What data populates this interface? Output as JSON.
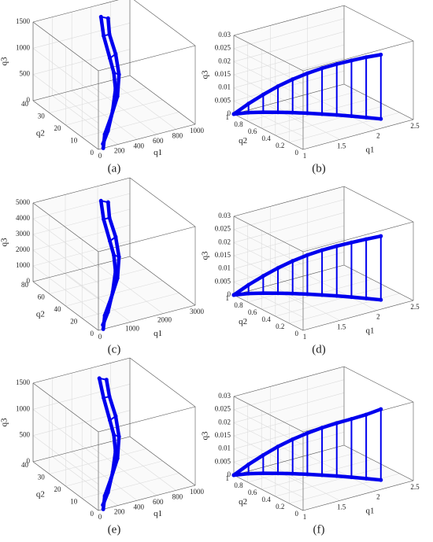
{
  "chart_data": [
    {
      "type": "line3d",
      "caption": "(a)",
      "xlabel": "q1",
      "ylabel": "q2",
      "zlabel": "q3",
      "xlim": [
        0,
        1000
      ],
      "xticks": [
        0,
        200,
        400,
        600,
        800,
        1000
      ],
      "ylim": [
        0,
        40
      ],
      "yticks": [
        0,
        10,
        20,
        30,
        40
      ],
      "zlim": [
        0,
        1500
      ],
      "zticks": [
        0,
        500,
        1000,
        1500
      ],
      "grid": true,
      "series": [
        {
          "color": "#0000ee",
          "x": [
            50,
            150,
            300,
            450,
            550,
            600,
            620,
            640
          ],
          "y": [
            0,
            5,
            10,
            15,
            20,
            25,
            30,
            32
          ],
          "z": [
            0,
            100,
            250,
            450,
            700,
            950,
            1200,
            1450
          ]
        },
        {
          "color": "#0000ee",
          "x": [
            80,
            200,
            350,
            480,
            530,
            540,
            560,
            600
          ],
          "y": [
            2,
            6,
            12,
            18,
            22,
            25,
            30,
            34
          ],
          "z": [
            20,
            120,
            300,
            500,
            700,
            900,
            1200,
            1450
          ]
        }
      ]
    },
    {
      "type": "line3d",
      "caption": "(b)",
      "xlabel": "q1",
      "ylabel": "q2",
      "zlabel": "q3",
      "xlim": [
        1,
        2.5
      ],
      "xticks": [
        1,
        1.5,
        2,
        2.5
      ],
      "ylim": [
        0,
        1
      ],
      "yticks": [
        0,
        0.2,
        0.4,
        0.6,
        0.8,
        1
      ],
      "zlim": [
        0,
        0.03
      ],
      "zticks": [
        0,
        0.005,
        0.01,
        0.015,
        0.02,
        0.025,
        0.03
      ],
      "grid": true,
      "series": [
        {
          "color": "#0000ee",
          "x": [
            1,
            1.12,
            1.24,
            1.36,
            1.48,
            1.6,
            1.72,
            1.84,
            1.96,
            2.08,
            2.2
          ],
          "y": [
            1,
            0.915,
            0.83,
            0.745,
            0.66,
            0.575,
            0.49,
            0.405,
            0.32,
            0.235,
            0.15
          ],
          "z": [
            0,
            0.0008,
            0.0012,
            0.0014,
            0.0015,
            0.0015,
            0.0014,
            0.0013,
            0.0011,
            0.0008,
            0.0005
          ]
        },
        {
          "color": "#0000ee",
          "x": [
            1,
            1.12,
            1.24,
            1.36,
            1.48,
            1.6,
            1.72,
            1.84,
            1.96,
            2.08,
            2.2
          ],
          "y": [
            1,
            0.915,
            0.83,
            0.745,
            0.66,
            0.575,
            0.49,
            0.405,
            0.32,
            0.235,
            0.15
          ],
          "z": [
            0,
            0.0042,
            0.0079,
            0.0113,
            0.0142,
            0.0167,
            0.0189,
            0.0207,
            0.0223,
            0.0238,
            0.025
          ]
        }
      ]
    },
    {
      "type": "line3d",
      "caption": "(c)",
      "xlabel": "q1",
      "ylabel": "q2",
      "zlabel": "q3",
      "xlim": [
        0,
        3000
      ],
      "xticks": [
        0,
        1000,
        2000,
        3000
      ],
      "ylim": [
        0,
        80
      ],
      "yticks": [
        0,
        20,
        40,
        60,
        80
      ],
      "zlim": [
        0,
        5000
      ],
      "zticks": [
        0,
        1000,
        2000,
        3000,
        4000,
        5000
      ],
      "grid": true,
      "series": [
        {
          "color": "#0000ee",
          "x": [
            150,
            450,
            900,
            1350,
            1650,
            1800,
            1860,
            1920
          ],
          "y": [
            0,
            10,
            20,
            30,
            40,
            50,
            60,
            64
          ],
          "z": [
            0,
            320,
            800,
            1440,
            2240,
            3040,
            3840,
            4640
          ]
        },
        {
          "color": "#0000ee",
          "x": [
            240,
            600,
            1050,
            1440,
            1590,
            1620,
            1680,
            1800
          ],
          "y": [
            4,
            12,
            24,
            36,
            44,
            50,
            60,
            68
          ],
          "z": [
            64,
            384,
            960,
            1600,
            2240,
            2880,
            3840,
            4640
          ]
        }
      ]
    },
    {
      "type": "line3d",
      "caption": "(d)",
      "xlabel": "q1",
      "ylabel": "q2",
      "zlabel": "q3",
      "xlim": [
        1,
        2.5
      ],
      "xticks": [
        1,
        1.5,
        2,
        2.5
      ],
      "ylim": [
        0,
        1
      ],
      "yticks": [
        0,
        0.2,
        0.4,
        0.6,
        0.8,
        1
      ],
      "zlim": [
        0,
        0.03
      ],
      "zticks": [
        0,
        0.005,
        0.01,
        0.015,
        0.02,
        0.025,
        0.03
      ],
      "grid": true,
      "series": [
        {
          "color": "#0000ee",
          "x": [
            1,
            1.12,
            1.24,
            1.36,
            1.48,
            1.6,
            1.72,
            1.84,
            1.96,
            2.08,
            2.2
          ],
          "y": [
            1,
            0.915,
            0.83,
            0.745,
            0.66,
            0.575,
            0.49,
            0.405,
            0.32,
            0.235,
            0.15
          ],
          "z": [
            0,
            0.0008,
            0.0012,
            0.0014,
            0.0015,
            0.0015,
            0.0014,
            0.0013,
            0.0011,
            0.0008,
            0.0005
          ]
        },
        {
          "color": "#0000ee",
          "x": [
            1,
            1.12,
            1.24,
            1.36,
            1.48,
            1.6,
            1.72,
            1.84,
            1.96,
            2.08,
            2.2
          ],
          "y": [
            1,
            0.915,
            0.83,
            0.745,
            0.66,
            0.575,
            0.49,
            0.405,
            0.32,
            0.235,
            0.15
          ],
          "z": [
            0,
            0.0041,
            0.0077,
            0.011,
            0.0139,
            0.0164,
            0.0185,
            0.0203,
            0.0219,
            0.0234,
            0.0248
          ]
        }
      ]
    },
    {
      "type": "line3d",
      "caption": "(e)",
      "xlabel": "q1",
      "ylabel": "q2",
      "zlabel": "q3",
      "xlim": [
        0,
        1000
      ],
      "xticks": [
        0,
        200,
        400,
        600,
        800,
        1000
      ],
      "ylim": [
        0,
        40
      ],
      "yticks": [
        0,
        10,
        20,
        30,
        40
      ],
      "zlim": [
        0,
        1500
      ],
      "zticks": [
        0,
        500,
        1000,
        1500
      ],
      "grid": true,
      "series": [
        {
          "color": "#0000ee",
          "x": [
            50,
            150,
            300,
            450,
            550,
            600,
            620,
            640
          ],
          "y": [
            0,
            5,
            10,
            15,
            20,
            25,
            30,
            33
          ],
          "z": [
            0,
            90,
            240,
            430,
            680,
            930,
            1180,
            1420
          ]
        },
        {
          "color": "#0000ee",
          "x": [
            80,
            200,
            350,
            480,
            530,
            540,
            560,
            600
          ],
          "y": [
            2,
            6,
            12,
            18,
            22,
            25,
            30,
            35
          ],
          "z": [
            20,
            110,
            290,
            480,
            680,
            880,
            1180,
            1420
          ]
        }
      ]
    },
    {
      "type": "line3d",
      "caption": "(f)",
      "xlabel": "q1",
      "ylabel": "q2",
      "zlabel": "q3",
      "xlim": [
        1,
        2.5
      ],
      "xticks": [
        1,
        1.5,
        2,
        2.5
      ],
      "ylim": [
        0,
        1
      ],
      "yticks": [
        0,
        0.2,
        0.4,
        0.6,
        0.8,
        1
      ],
      "zlim": [
        0,
        0.03
      ],
      "zticks": [
        0,
        0.005,
        0.01,
        0.015,
        0.02,
        0.025,
        0.03
      ],
      "grid": true,
      "series": [
        {
          "color": "#0000ee",
          "x": [
            1,
            1.12,
            1.24,
            1.36,
            1.48,
            1.6,
            1.72,
            1.84,
            1.96,
            2.08,
            2.2
          ],
          "y": [
            1,
            0.915,
            0.83,
            0.745,
            0.66,
            0.575,
            0.49,
            0.405,
            0.32,
            0.235,
            0.15
          ],
          "z": [
            0,
            0.0008,
            0.0012,
            0.0014,
            0.0015,
            0.0015,
            0.0014,
            0.0013,
            0.0011,
            0.0008,
            0.0005
          ]
        },
        {
          "color": "#0000ee",
          "x": [
            1,
            1.12,
            1.24,
            1.36,
            1.48,
            1.6,
            1.72,
            1.84,
            1.96,
            2.08,
            2.2
          ],
          "y": [
            1,
            0.915,
            0.83,
            0.745,
            0.66,
            0.575,
            0.49,
            0.405,
            0.32,
            0.235,
            0.15
          ],
          "z": [
            0,
            0.0043,
            0.0081,
            0.0116,
            0.0146,
            0.0172,
            0.0195,
            0.0215,
            0.0233,
            0.0252,
            0.0275
          ]
        }
      ]
    }
  ]
}
